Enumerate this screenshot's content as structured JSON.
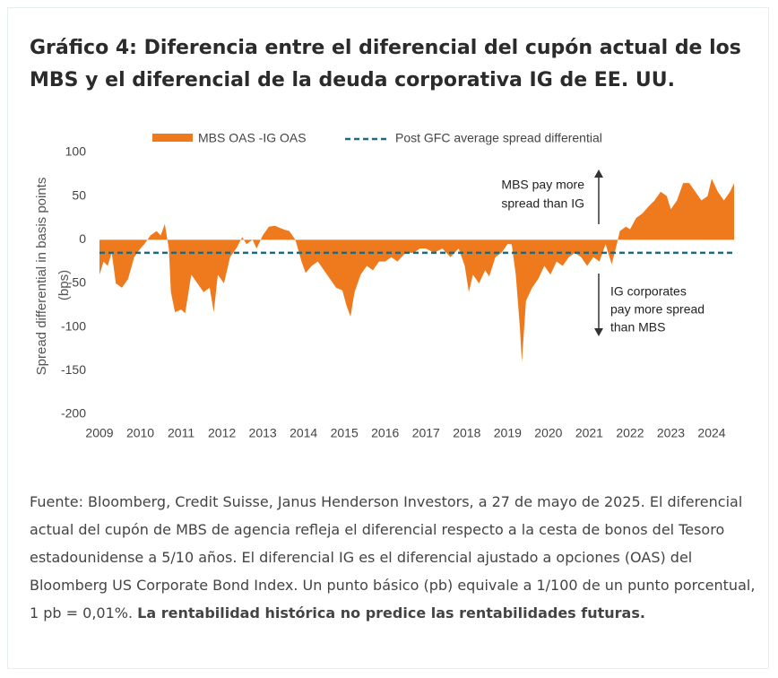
{
  "chart_data": {
    "type": "area",
    "title": "Gráfico 4: Diferencia entre el diferencial del cupón actual de los MBS y el diferencial de la deuda corporativa IG de EE. UU.",
    "y_label": [
      "Spread differential in basis points",
      "(bps)"
    ],
    "x": [
      2009.0,
      2009.1,
      2009.2,
      2009.3,
      2009.4,
      2009.55,
      2009.7,
      2009.85,
      2010.0,
      2010.1,
      2010.25,
      2010.4,
      2010.5,
      2010.6,
      2010.7,
      2010.75,
      2010.85,
      2011.0,
      2011.1,
      2011.25,
      2011.4,
      2011.55,
      2011.7,
      2011.8,
      2011.9,
      2012.05,
      2012.2,
      2012.35,
      2012.5,
      2012.6,
      2012.75,
      2012.85,
      2013.0,
      2013.15,
      2013.3,
      2013.5,
      2013.65,
      2013.8,
      2013.95,
      2014.05,
      2014.2,
      2014.35,
      2014.5,
      2014.65,
      2014.8,
      2014.95,
      2015.05,
      2015.15,
      2015.25,
      2015.4,
      2015.55,
      2015.7,
      2015.85,
      2016.0,
      2016.15,
      2016.3,
      2016.5,
      2016.7,
      2016.85,
      2017.0,
      2017.2,
      2017.4,
      2017.6,
      2017.8,
      2017.95,
      2018.05,
      2018.15,
      2018.3,
      2018.45,
      2018.55,
      2018.7,
      2018.85,
      2019.0,
      2019.1,
      2019.2,
      2019.3,
      2019.35,
      2019.45,
      2019.6,
      2019.75,
      2019.9,
      2020.05,
      2020.2,
      2020.35,
      2020.5,
      2020.65,
      2020.8,
      2020.95,
      2021.1,
      2021.25,
      2021.4,
      2021.55,
      2021.65,
      2021.75,
      2021.9,
      2022.0,
      2022.15,
      2022.3,
      2022.45,
      2022.6,
      2022.75,
      2022.9,
      2023.0,
      2023.15,
      2023.3,
      2023.45,
      2023.6,
      2023.75,
      2023.9,
      2024.0,
      2024.15,
      2024.3,
      2024.45,
      2024.55
    ],
    "series": [
      {
        "name": "MBS OAS -IG OAS",
        "color": "#ef7a1e",
        "values": [
          -40,
          -25,
          -30,
          -15,
          -50,
          -55,
          -45,
          -20,
          -10,
          -5,
          5,
          10,
          5,
          18,
          -10,
          -60,
          -83,
          -80,
          -84,
          -40,
          -50,
          -60,
          -55,
          -83,
          -40,
          -50,
          -20,
          -10,
          3,
          -5,
          0,
          -10,
          5,
          15,
          16,
          12,
          10,
          0,
          -25,
          -38,
          -30,
          -25,
          -35,
          -45,
          -55,
          -58,
          -75,
          -88,
          -60,
          -40,
          -30,
          -35,
          -25,
          -25,
          -20,
          -25,
          -15,
          -15,
          -10,
          -10,
          -15,
          -10,
          -20,
          -10,
          -30,
          -60,
          -40,
          -50,
          -35,
          -42,
          -20,
          -15,
          -5,
          -5,
          -40,
          -100,
          -140,
          -70,
          -55,
          -45,
          -30,
          -40,
          -25,
          -30,
          -20,
          -15,
          -20,
          -30,
          -20,
          -25,
          -5,
          -28,
          -10,
          10,
          15,
          12,
          25,
          30,
          38,
          45,
          55,
          50,
          35,
          45,
          65,
          65,
          55,
          45,
          50,
          70,
          55,
          45,
          55,
          65
        ]
      }
    ],
    "reference_line": {
      "name": "Post GFC average spread differential",
      "value": -15,
      "color": "#1d6a80"
    },
    "xlim": [
      2009,
      2024.6
    ],
    "xticks": [
      2009,
      2010,
      2011,
      2012,
      2013,
      2014,
      2015,
      2016,
      2017,
      2018,
      2019,
      2020,
      2021,
      2022,
      2023,
      2024
    ],
    "ylim": [
      -200,
      100
    ],
    "yticks": [
      -200,
      -150,
      -100,
      -50,
      0,
      50,
      100
    ],
    "annotations": [
      [
        "MBS pay more",
        "spread than IG"
      ],
      [
        "IG corporates",
        "pay more spread",
        "than MBS"
      ]
    ]
  },
  "footnote": {
    "text": "Fuente: Bloomberg, Credit Suisse, Janus Henderson Investors, a 27 de mayo de 2025. El diferencial actual del cupón de MBS de agencia refleja el diferencial respecto a la cesta de bonos del Tesoro estadounidense a 5/10 años. El diferencial IG es el diferencial ajustado a opciones (OAS) del Bloomberg US Corporate Bond Index. Un punto básico (pb) equivale a 1/100 de un punto porcentual, 1 pb = 0,01%.",
    "bold": "La rentabilidad histórica no predice las rentabilidades futuras."
  }
}
